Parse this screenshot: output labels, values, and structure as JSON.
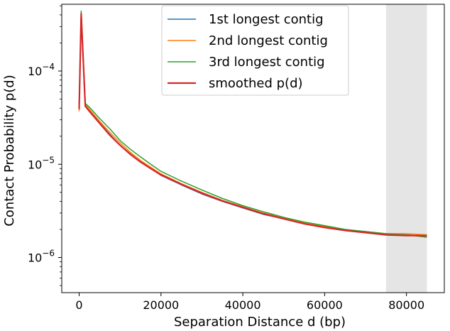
{
  "chart_data": {
    "type": "line",
    "xlabel": "Separation Distance d (bp)",
    "ylabel": "Contact Probability p(d)",
    "xlim": [
      -4250,
      89250
    ],
    "ylim": [
      4.2e-07,
      0.00052
    ],
    "yscale": "log",
    "x_ticks": [
      0,
      20000,
      40000,
      60000,
      80000
    ],
    "x_tick_labels": [
      "0",
      "20000",
      "40000",
      "60000",
      "80000"
    ],
    "y_ticks": [
      1e-06,
      1e-05,
      0.0001
    ],
    "y_tick_labels": [
      {
        "base": "10",
        "exp": "−6"
      },
      {
        "base": "10",
        "exp": "−5"
      },
      {
        "base": "10",
        "exp": "−4"
      }
    ],
    "shaded_region": {
      "x": [
        75000,
        85000
      ],
      "color": "#e5e5e5"
    },
    "legend_position": "top-center",
    "series": [
      {
        "name": "1st longest contig",
        "color": "#1f77b4",
        "x": [
          0,
          500,
          1500,
          2500,
          5000,
          7500,
          10000,
          12500,
          15000,
          17500,
          20000,
          25000,
          30000,
          35000,
          40000,
          45000,
          50000,
          55000,
          60000,
          65000,
          70000,
          75000,
          80000,
          85000
        ],
        "y": [
          4e-05,
          0.00042,
          4.3e-05,
          3.8e-05,
          2.8e-05,
          2.1e-05,
          1.6e-05,
          1.3e-05,
          1.05e-05,
          9e-06,
          7.6e-06,
          6e-06,
          4.8e-06,
          4e-06,
          3.4e-06,
          2.9e-06,
          2.6e-06,
          2.3e-06,
          2.1e-06,
          1.95e-06,
          1.85e-06,
          1.75e-06,
          1.75e-06,
          1.7e-06
        ]
      },
      {
        "name": "2nd longest contig",
        "color": "#ff7f0e",
        "x": [
          0,
          500,
          1500,
          2500,
          5000,
          7500,
          10000,
          12500,
          15000,
          17500,
          20000,
          25000,
          30000,
          35000,
          40000,
          45000,
          50000,
          55000,
          60000,
          65000,
          70000,
          75000,
          80000,
          85000
        ],
        "y": [
          3.7e-05,
          0.00041,
          4.4e-05,
          3.9e-05,
          2.9e-05,
          2.2e-05,
          1.7e-05,
          1.35e-05,
          1.1e-05,
          9.3e-06,
          7.9e-06,
          6.2e-06,
          5e-06,
          4.1e-06,
          3.5e-06,
          3e-06,
          2.65e-06,
          2.35e-06,
          2.15e-06,
          2e-06,
          1.9e-06,
          1.8e-06,
          1.8e-06,
          1.75e-06
        ]
      },
      {
        "name": "3rd longest contig",
        "color": "#2ca02c",
        "x": [
          0,
          500,
          1500,
          2500,
          5000,
          7500,
          10000,
          12500,
          15000,
          17500,
          20000,
          25000,
          30000,
          35000,
          40000,
          45000,
          50000,
          55000,
          60000,
          65000,
          70000,
          75000,
          80000,
          85000
        ],
        "y": [
          4.2e-05,
          0.00044,
          4.5e-05,
          4.1e-05,
          3.1e-05,
          2.4e-05,
          1.8e-05,
          1.45e-05,
          1.2e-05,
          1e-05,
          8.4e-06,
          6.6e-06,
          5.3e-06,
          4.3e-06,
          3.6e-06,
          3.1e-06,
          2.7e-06,
          2.4e-06,
          2.2e-06,
          2e-06,
          1.9e-06,
          1.8e-06,
          1.75e-06,
          1.65e-06
        ]
      },
      {
        "name": "smoothed p(d)",
        "color": "#d62728",
        "x": [
          0,
          500,
          1500,
          2500,
          5000,
          7500,
          10000,
          12500,
          15000,
          17500,
          20000,
          25000,
          30000,
          35000,
          40000,
          45000,
          50000,
          55000,
          60000,
          65000,
          70000,
          75000,
          80000,
          85000
        ],
        "y": [
          3.9e-05,
          0.00041,
          4.2e-05,
          3.7e-05,
          2.75e-05,
          2.05e-05,
          1.6e-05,
          1.28e-05,
          1.06e-05,
          9e-06,
          7.7e-06,
          6.1e-06,
          4.9e-06,
          4.05e-06,
          3.45e-06,
          2.95e-06,
          2.6e-06,
          2.3e-06,
          2.1e-06,
          1.95e-06,
          1.85e-06,
          1.75e-06,
          1.72e-06,
          1.72e-06
        ]
      }
    ]
  }
}
